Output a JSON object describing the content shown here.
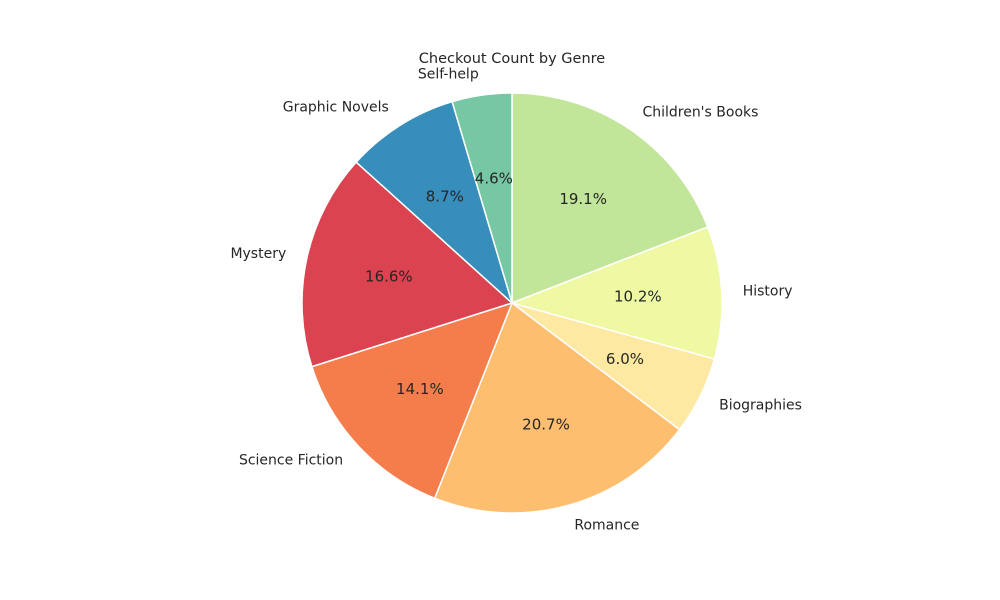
{
  "chart_data": {
    "type": "pie",
    "title": "Checkout Count by Genre",
    "start_angle_deg": 90,
    "direction": "clockwise",
    "slices": [
      {
        "label": "Children's Books",
        "percent": 19.1,
        "pct_label": "19.1%",
        "color": "#c2e699"
      },
      {
        "label": "History",
        "percent": 10.2,
        "pct_label": "10.2%",
        "color": "#eff9a4"
      },
      {
        "label": "Biographies",
        "percent": 6.0,
        "pct_label": "6.0%",
        "color": "#fde9a1"
      },
      {
        "label": "Romance",
        "percent": 20.7,
        "pct_label": "20.7%",
        "color": "#fdbe70"
      },
      {
        "label": "Science Fiction",
        "percent": 14.1,
        "pct_label": "14.1%",
        "color": "#f57d4b"
      },
      {
        "label": "Mystery",
        "percent": 16.6,
        "pct_label": "16.6%",
        "color": "#da434f"
      },
      {
        "label": "Graphic Novels",
        "percent": 8.7,
        "pct_label": "8.7%",
        "color": "#378ebb"
      },
      {
        "label": "Self-help",
        "percent": 4.6,
        "pct_label": "4.6%",
        "color": "#76c8a5"
      }
    ]
  }
}
